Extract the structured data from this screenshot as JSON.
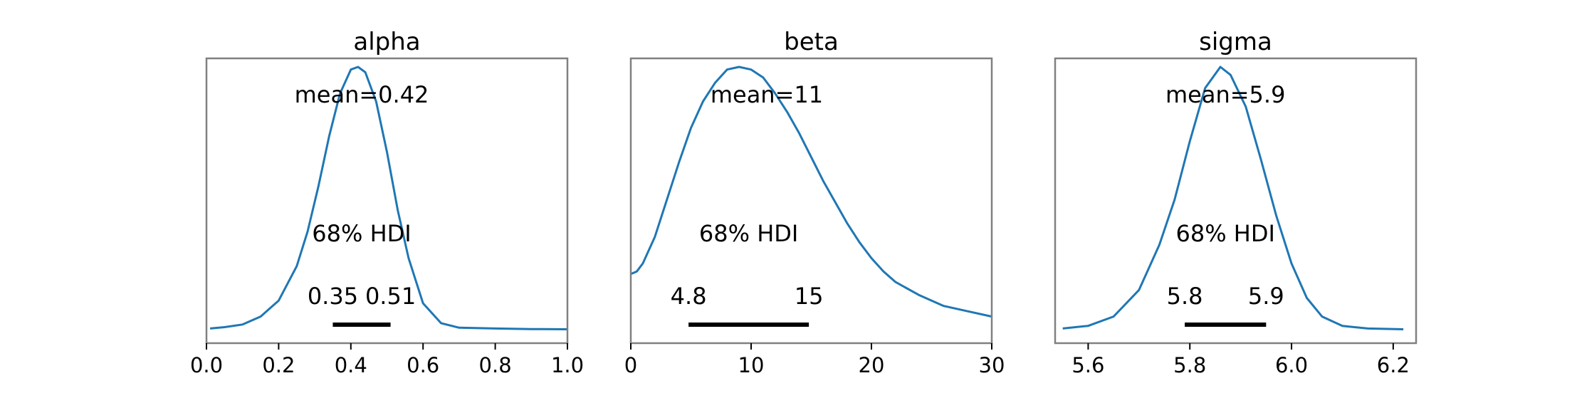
{
  "chart_data": [
    {
      "type": "line",
      "title": "alpha",
      "xlim": [
        0.0,
        1.0
      ],
      "xticks": [
        0.0,
        0.2,
        0.4,
        0.6,
        0.8,
        1.0
      ],
      "xtick_labels": [
        "0.0",
        "0.2",
        "0.4",
        "0.6",
        "0.8",
        "1.0"
      ],
      "x": [
        0.01,
        0.05,
        0.1,
        0.15,
        0.2,
        0.25,
        0.28,
        0.31,
        0.34,
        0.37,
        0.4,
        0.42,
        0.44,
        0.47,
        0.5,
        0.53,
        0.56,
        0.6,
        0.65,
        0.7,
        0.8,
        0.9,
        1.0
      ],
      "density": [
        0.015,
        0.02,
        0.03,
        0.06,
        0.12,
        0.25,
        0.38,
        0.55,
        0.74,
        0.9,
        0.99,
        1.0,
        0.98,
        0.87,
        0.68,
        0.46,
        0.28,
        0.11,
        0.035,
        0.018,
        0.015,
        0.013,
        0.012
      ],
      "mean_text": "mean=0.42",
      "hdi_text": "68% HDI",
      "hdi": [
        0.35,
        0.51
      ],
      "hdi_labels": [
        "0.35",
        "0.51"
      ]
    },
    {
      "type": "line",
      "title": "beta",
      "xlim": [
        0,
        30
      ],
      "xticks": [
        0,
        10,
        20,
        30
      ],
      "xtick_labels": [
        "0",
        "10",
        "20",
        "30"
      ],
      "x": [
        0,
        0.5,
        1,
        2,
        3,
        4,
        5,
        6,
        7,
        8,
        9,
        10,
        11,
        12,
        13,
        14,
        15,
        16,
        17,
        18,
        19,
        20,
        21,
        22,
        24,
        26,
        28,
        30
      ],
      "density": [
        0.22,
        0.23,
        0.26,
        0.36,
        0.5,
        0.64,
        0.77,
        0.87,
        0.94,
        0.99,
        1.0,
        0.99,
        0.96,
        0.9,
        0.83,
        0.75,
        0.66,
        0.57,
        0.49,
        0.41,
        0.34,
        0.28,
        0.23,
        0.19,
        0.14,
        0.1,
        0.08,
        0.06
      ],
      "mean_text": "mean=11",
      "hdi_text": "68% HDI",
      "hdi": [
        4.8,
        14.8
      ],
      "hdi_labels": [
        "4.8",
        "15"
      ]
    },
    {
      "type": "line",
      "title": "sigma",
      "xlim": [
        5.535,
        6.245
      ],
      "xticks": [
        5.6,
        5.8,
        6.0,
        6.2
      ],
      "xtick_labels": [
        "5.6",
        "5.8",
        "6.0",
        "6.2"
      ],
      "x": [
        5.55,
        5.6,
        5.65,
        5.7,
        5.74,
        5.77,
        5.8,
        5.83,
        5.86,
        5.88,
        5.91,
        5.94,
        5.97,
        6.0,
        6.03,
        6.06,
        6.1,
        6.15,
        6.22
      ],
      "density": [
        0.015,
        0.025,
        0.06,
        0.16,
        0.33,
        0.5,
        0.72,
        0.92,
        1.0,
        0.97,
        0.85,
        0.65,
        0.44,
        0.26,
        0.13,
        0.06,
        0.025,
        0.015,
        0.012
      ],
      "mean_text": "mean=5.9",
      "hdi_text": "68% HDI",
      "hdi": [
        5.79,
        5.95
      ],
      "hdi_labels": [
        "5.8",
        "5.9"
      ]
    }
  ],
  "colors": {
    "line": "#1f77b4",
    "hdi": "#000000",
    "frame": "#808080"
  }
}
